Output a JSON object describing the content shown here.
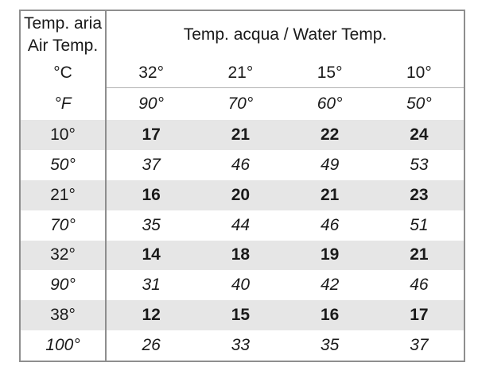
{
  "table": {
    "header": {
      "air_line1": "Temp. aria",
      "air_line2": "Air Temp.",
      "water_label": "Temp. acqua / Water Temp."
    },
    "unit_rows": [
      {
        "label": "°C",
        "values": [
          "32°",
          "21°",
          "15°",
          "10°"
        ]
      },
      {
        "label": "°F",
        "values": [
          "90°",
          "70°",
          "60°",
          "50°"
        ]
      }
    ],
    "data_rows": [
      {
        "air": "10°",
        "values": [
          "17",
          "21",
          "22",
          "24"
        ]
      },
      {
        "air": "50°",
        "values": [
          "37",
          "46",
          "49",
          "53"
        ]
      },
      {
        "air": "21°",
        "values": [
          "16",
          "20",
          "21",
          "23"
        ]
      },
      {
        "air": "70°",
        "values": [
          "35",
          "44",
          "46",
          "51"
        ]
      },
      {
        "air": "32°",
        "values": [
          "14",
          "18",
          "19",
          "21"
        ]
      },
      {
        "air": "90°",
        "values": [
          "31",
          "40",
          "42",
          "46"
        ]
      },
      {
        "air": "38°",
        "values": [
          "12",
          "15",
          "16",
          "17"
        ]
      },
      {
        "air": "100°",
        "values": [
          "26",
          "33",
          "35",
          "37"
        ]
      }
    ],
    "colors": {
      "shaded_row": "#e6e6e6",
      "border": "#8e8e8e",
      "separator": "#b3b3b3",
      "text": "#1a1a1a",
      "background": "#ffffff"
    }
  },
  "chart_data": {
    "type": "table",
    "title": "Temp. acqua / Water Temp.",
    "row_header_title": "Temp. aria / Air Temp.",
    "columns_water_temp_c": [
      "32°",
      "21°",
      "15°",
      "10°"
    ],
    "columns_water_temp_f": [
      "90°",
      "70°",
      "60°",
      "50°"
    ],
    "rows": [
      {
        "air_temp": "10°",
        "unit": "°C",
        "values": [
          17,
          21,
          22,
          24
        ]
      },
      {
        "air_temp": "50°",
        "unit": "°F",
        "values": [
          37,
          46,
          49,
          53
        ]
      },
      {
        "air_temp": "21°",
        "unit": "°C",
        "values": [
          16,
          20,
          21,
          23
        ]
      },
      {
        "air_temp": "70°",
        "unit": "°F",
        "values": [
          35,
          44,
          46,
          51
        ]
      },
      {
        "air_temp": "32°",
        "unit": "°C",
        "values": [
          14,
          18,
          19,
          21
        ]
      },
      {
        "air_temp": "90°",
        "unit": "°F",
        "values": [
          31,
          40,
          42,
          46
        ]
      },
      {
        "air_temp": "38°",
        "unit": "°C",
        "values": [
          12,
          15,
          16,
          17
        ]
      },
      {
        "air_temp": "100°",
        "unit": "°F",
        "values": [
          26,
          33,
          35,
          37
        ]
      }
    ],
    "layout": {
      "celsius_rows_shaded_bold": true,
      "fahrenheit_rows_italic": true,
      "grid": "outer border + vertical divider after row-header column + separator between °C and °F header rows"
    }
  }
}
